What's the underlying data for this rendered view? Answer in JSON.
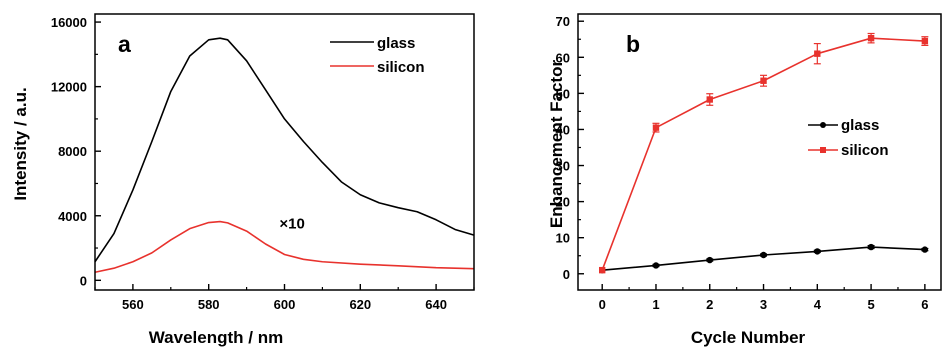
{
  "chart_data": [
    {
      "id": "a",
      "type": "line",
      "panel_label": "a",
      "xlabel": "Wavelength / nm",
      "ylabel": "Intensity / a.u.",
      "xlim": [
        550,
        650
      ],
      "ylim": [
        -600,
        16500
      ],
      "xticks": [
        560,
        580,
        600,
        620,
        640
      ],
      "yticks": [
        0,
        4000,
        8000,
        12000,
        16000
      ],
      "x_minor_step": 10,
      "y_minor_step": 2000,
      "legend_position": "top-right",
      "annotation": {
        "text": "×10",
        "x": 602,
        "y": 3200
      },
      "series": [
        {
          "name": "glass",
          "color": "#000000",
          "x": [
            550,
            555,
            560,
            565,
            570,
            575,
            580,
            583,
            585,
            590,
            595,
            600,
            605,
            610,
            615,
            620,
            625,
            630,
            635,
            640,
            645,
            650
          ],
          "y": [
            1150,
            2900,
            5600,
            8600,
            11700,
            13900,
            14900,
            15000,
            14900,
            13600,
            11800,
            10000,
            8600,
            7300,
            6100,
            5300,
            4800,
            4500,
            4250,
            3750,
            3150,
            2800
          ]
        },
        {
          "name": "silicon",
          "color": "#e8322d",
          "x": [
            550,
            555,
            560,
            565,
            570,
            575,
            580,
            583,
            585,
            590,
            595,
            600,
            605,
            610,
            620,
            630,
            640,
            650
          ],
          "y": [
            500,
            750,
            1150,
            1700,
            2500,
            3200,
            3580,
            3640,
            3560,
            3050,
            2250,
            1600,
            1300,
            1150,
            1000,
            900,
            780,
            720
          ]
        }
      ]
    },
    {
      "id": "b",
      "type": "line",
      "panel_label": "b",
      "xlabel": "Cycle Number",
      "ylabel": "Enhancement Factor",
      "xlim": [
        -0.45,
        6.3
      ],
      "ylim": [
        -4.5,
        72
      ],
      "xticks": [
        0,
        1,
        2,
        3,
        4,
        5,
        6
      ],
      "yticks": [
        0,
        10,
        20,
        30,
        40,
        50,
        60,
        70
      ],
      "x_minor_step": 0.5,
      "y_minor_step": 5,
      "legend_position": "center-right",
      "series": [
        {
          "name": "glass",
          "color": "#000000",
          "marker": "circle",
          "x": [
            0,
            1,
            2,
            3,
            4,
            5,
            6
          ],
          "y": [
            1,
            2.3,
            3.8,
            5.2,
            6.2,
            7.4,
            6.7
          ],
          "err": [
            0,
            0.3,
            0.3,
            0.3,
            0.3,
            0.4,
            0.3
          ]
        },
        {
          "name": "silicon",
          "color": "#e8322d",
          "marker": "square",
          "x": [
            0,
            1,
            2,
            3,
            4,
            5,
            6
          ],
          "y": [
            1,
            40.5,
            48.3,
            53.5,
            61,
            65.3,
            64.5
          ],
          "err": [
            0,
            1.2,
            1.6,
            1.5,
            2.8,
            1.3,
            1.2
          ]
        }
      ]
    }
  ]
}
